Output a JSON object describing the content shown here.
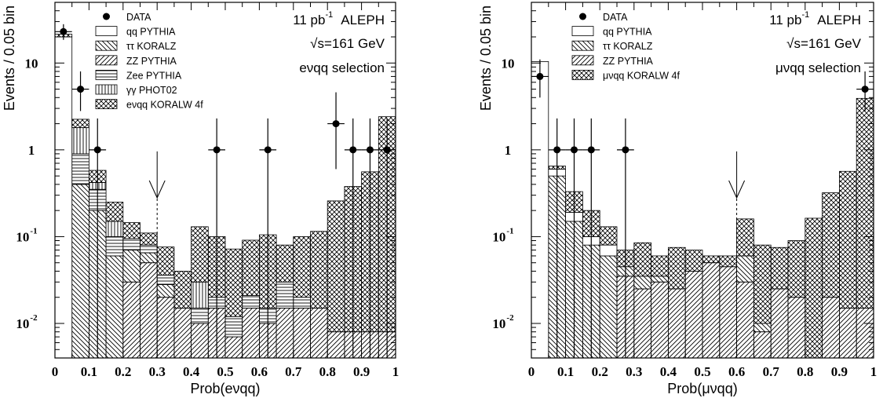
{
  "chart_data": [
    {
      "type": "bar",
      "xlabel": "Prob(eνqq)",
      "ylabel": "Events / 0.05 bin",
      "yscale": "log",
      "xlim": [
        0,
        1
      ],
      "ylim": [
        0.004,
        50
      ],
      "x_ticks": [
        "0",
        "0.1",
        "0.2",
        "0.3",
        "0.4",
        "0.5",
        "0.6",
        "0.7",
        "0.8",
        "0.9",
        "1"
      ],
      "y_ticks": [
        {
          "value": 10,
          "base": "10",
          "exp": ""
        },
        {
          "value": 1,
          "base": "1",
          "exp": ""
        },
        {
          "value": 0.1,
          "base": "10",
          "exp": "-1"
        },
        {
          "value": 0.01,
          "base": "10",
          "exp": "-2"
        }
      ],
      "info": {
        "lumi": "11 pb",
        "lumi_exp": "-1",
        "experiment": "ALEPH",
        "energy": "√s=161 GeV",
        "selection": "eνqq selection"
      },
      "legend_placement": "top-left",
      "legend": [
        {
          "label": "DATA",
          "kind": "marker"
        },
        {
          "label": "qq PYTHIA",
          "kind": "open"
        },
        {
          "label": "ττ KORALZ",
          "kind": "diag-down"
        },
        {
          "label": "ZZ PYTHIA",
          "kind": "diag-up"
        },
        {
          "label": "Zee PYTHIA",
          "kind": "horizontal"
        },
        {
          "label": "γγ PHOT02",
          "kind": "vertical"
        },
        {
          "label": "eνqq KORALW 4f",
          "kind": "cross"
        }
      ],
      "bin_edges": [
        0,
        0.05,
        0.1,
        0.15,
        0.2,
        0.25,
        0.3,
        0.35,
        0.4,
        0.45,
        0.5,
        0.55,
        0.6,
        0.65,
        0.7,
        0.75,
        0.8,
        0.85,
        0.9,
        0.95,
        1.0
      ],
      "stack": [
        {
          "name": "ZZ PYTHIA",
          "pattern": "diag-up",
          "values": [
            0,
            0,
            0,
            0,
            0.03,
            0.05,
            0.02,
            0.015,
            0.01,
            0.015,
            0.007,
            0.015,
            0.01,
            0.015,
            0.015,
            0.015,
            0.008,
            0.008,
            0.008,
            0.008
          ]
        },
        {
          "name": "ττ KORALZ",
          "pattern": "diag-down",
          "values": [
            0,
            0.4,
            0.2,
            0.06,
            0.04,
            0.015,
            0.008,
            0,
            0,
            0,
            0,
            0,
            0,
            0,
            0,
            0,
            0,
            0,
            0,
            0
          ]
        },
        {
          "name": "Zee PYTHIA",
          "pattern": "horizontal",
          "values": [
            0,
            0.5,
            0.15,
            0.04,
            0.025,
            0.015,
            0.008,
            0,
            0.005,
            0.005,
            0.005,
            0.006,
            0.005,
            0.015,
            0.005,
            0,
            0,
            0,
            0,
            0
          ]
        },
        {
          "name": "γγ PHOT02",
          "pattern": "vertical",
          "values": [
            0,
            0.9,
            0.07,
            0.05,
            0,
            0,
            0,
            0,
            0.015,
            0,
            0,
            0,
            0,
            0,
            0,
            0,
            0,
            0,
            0,
            0
          ]
        },
        {
          "name": "qq PYTHIA",
          "pattern": "open",
          "values": [
            20,
            0,
            0,
            0,
            0,
            0,
            0,
            0,
            0,
            0,
            0,
            0,
            0,
            0,
            0,
            0,
            0,
            0,
            0,
            0
          ]
        },
        {
          "name": "eνqq KORALW 4f",
          "pattern": "cross",
          "values": [
            1.5,
            0.45,
            0.16,
            0.1,
            0.05,
            0.03,
            0.04,
            0.025,
            0.1,
            0.08,
            0.06,
            0.07,
            0.09,
            0.05,
            0.08,
            0.1,
            0.25,
            0.37,
            0.55,
            2.4
          ]
        }
      ],
      "data": [
        {
          "x": 0.025,
          "y": 23,
          "elo": 4.5,
          "ehi": 5
        },
        {
          "x": 0.075,
          "y": 5,
          "elo": 2.2,
          "ehi": 3
        },
        {
          "x": 0.125,
          "y": 1,
          "elo": 1,
          "ehi": 1.3
        },
        {
          "x": 0.475,
          "y": 1,
          "elo": 1,
          "ehi": 1.3
        },
        {
          "x": 0.625,
          "y": 1,
          "elo": 1,
          "ehi": 1.3
        },
        {
          "x": 0.825,
          "y": 2,
          "elo": 1.4,
          "ehi": 2.6
        },
        {
          "x": 0.875,
          "y": 1,
          "elo": 1,
          "ehi": 1.3
        },
        {
          "x": 0.925,
          "y": 1,
          "elo": 1,
          "ehi": 1.3
        },
        {
          "x": 0.975,
          "y": 1,
          "elo": 1,
          "ehi": 1.3
        }
      ],
      "cut_x": 0.3
    },
    {
      "type": "bar",
      "xlabel": "Prob(μνqq)",
      "ylabel": "Events / 0.05 bin",
      "yscale": "log",
      "xlim": [
        0,
        1
      ],
      "ylim": [
        0.004,
        50
      ],
      "x_ticks": [
        "0",
        "0.1",
        "0.2",
        "0.3",
        "0.4",
        "0.5",
        "0.6",
        "0.7",
        "0.8",
        "0.9",
        "1"
      ],
      "y_ticks": [
        {
          "value": 10,
          "base": "10",
          "exp": ""
        },
        {
          "value": 1,
          "base": "1",
          "exp": ""
        },
        {
          "value": 0.1,
          "base": "10",
          "exp": "-1"
        },
        {
          "value": 0.01,
          "base": "10",
          "exp": "-2"
        }
      ],
      "info": {
        "lumi": "11 pb",
        "lumi_exp": "-1",
        "experiment": "ALEPH",
        "energy": "√s=161 GeV",
        "selection": "μνqq selection"
      },
      "legend_placement": "top-left",
      "legend": [
        {
          "label": "DATA",
          "kind": "marker"
        },
        {
          "label": "qq PYTHIA",
          "kind": "open"
        },
        {
          "label": "ττ KORALZ",
          "kind": "diag-down"
        },
        {
          "label": "ZZ PYTHIA",
          "kind": "diag-up"
        },
        {
          "label": "μνqq KORALW 4f",
          "kind": "cross"
        }
      ],
      "bin_edges": [
        0,
        0.05,
        0.1,
        0.15,
        0.2,
        0.25,
        0.3,
        0.35,
        0.4,
        0.45,
        0.5,
        0.55,
        0.6,
        0.65,
        0.7,
        0.75,
        0.8,
        0.85,
        0.9,
        0.95,
        1.0
      ],
      "stack": [
        {
          "name": "ZZ PYTHIA",
          "pattern": "diag-up",
          "values": [
            0,
            0,
            0,
            0,
            0,
            0.035,
            0.025,
            0.03,
            0.025,
            0.04,
            0.05,
            0.045,
            0.03,
            0.008,
            0.025,
            0.02,
            0.003,
            0.02,
            0.015,
            0.015
          ]
        },
        {
          "name": "ττ KORALZ",
          "pattern": "diag-down",
          "values": [
            0,
            0.5,
            0.15,
            0.08,
            0.06,
            0.01,
            0.01,
            0.005,
            0,
            0,
            0,
            0,
            0.03,
            0.002,
            0,
            0,
            0,
            0,
            0,
            0
          ]
        },
        {
          "name": "qq PYTHIA",
          "pattern": "open",
          "values": [
            10.4,
            0.1,
            0.04,
            0.02,
            0.02,
            0,
            0,
            0,
            0,
            0,
            0,
            0,
            0,
            0,
            0,
            0,
            0,
            0,
            0,
            0
          ]
        },
        {
          "name": "μνqq KORALW 4f",
          "pattern": "cross",
          "values": [
            0,
            0.05,
            0.14,
            0.1,
            0.05,
            0.025,
            0.05,
            0.025,
            0.05,
            0.03,
            0.01,
            0.015,
            0.1,
            0.07,
            0.05,
            0.07,
            0.16,
            0.3,
            0.55,
            3.9
          ]
        }
      ],
      "data": [
        {
          "x": 0.025,
          "y": 7,
          "elo": 3,
          "ehi": 4
        },
        {
          "x": 0.075,
          "y": 1,
          "elo": 1,
          "ehi": 1.3
        },
        {
          "x": 0.125,
          "y": 1,
          "elo": 1,
          "ehi": 1.3
        },
        {
          "x": 0.175,
          "y": 1,
          "elo": 1,
          "ehi": 1.3
        },
        {
          "x": 0.275,
          "y": 1,
          "elo": 1,
          "ehi": 1.3
        },
        {
          "x": 0.975,
          "y": 5,
          "elo": 2.2,
          "ehi": 3
        }
      ],
      "cut_x": 0.6
    }
  ]
}
